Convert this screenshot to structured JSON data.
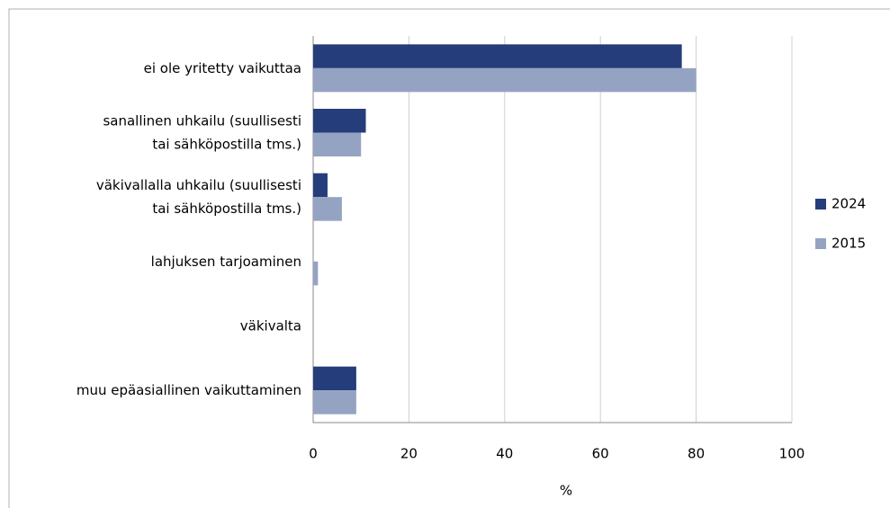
{
  "chart_data": {
    "type": "bar",
    "orientation": "horizontal",
    "categories": [
      "ei ole yritetty vaikuttaa",
      "sanallinen uhkailu (suullisesti tai sähköpostilla tms.)",
      "väkivallalla uhkailu (suullisesti tai sähköpostilla tms.)",
      "lahjuksen tarjoaminen",
      "väkivalta",
      "muu epäasiallinen vaikuttaminen"
    ],
    "series": [
      {
        "name": "2024",
        "color": "#253d7a",
        "values": [
          77,
          11,
          3,
          0,
          0,
          9
        ]
      },
      {
        "name": "2015",
        "color": "#95a3c3",
        "values": [
          80,
          10,
          6,
          1,
          0,
          9
        ]
      }
    ],
    "xlabel": "%",
    "xlim": [
      0,
      100
    ],
    "xticks": [
      0,
      20,
      40,
      60,
      80,
      100
    ],
    "grid": true,
    "legend": "right"
  }
}
